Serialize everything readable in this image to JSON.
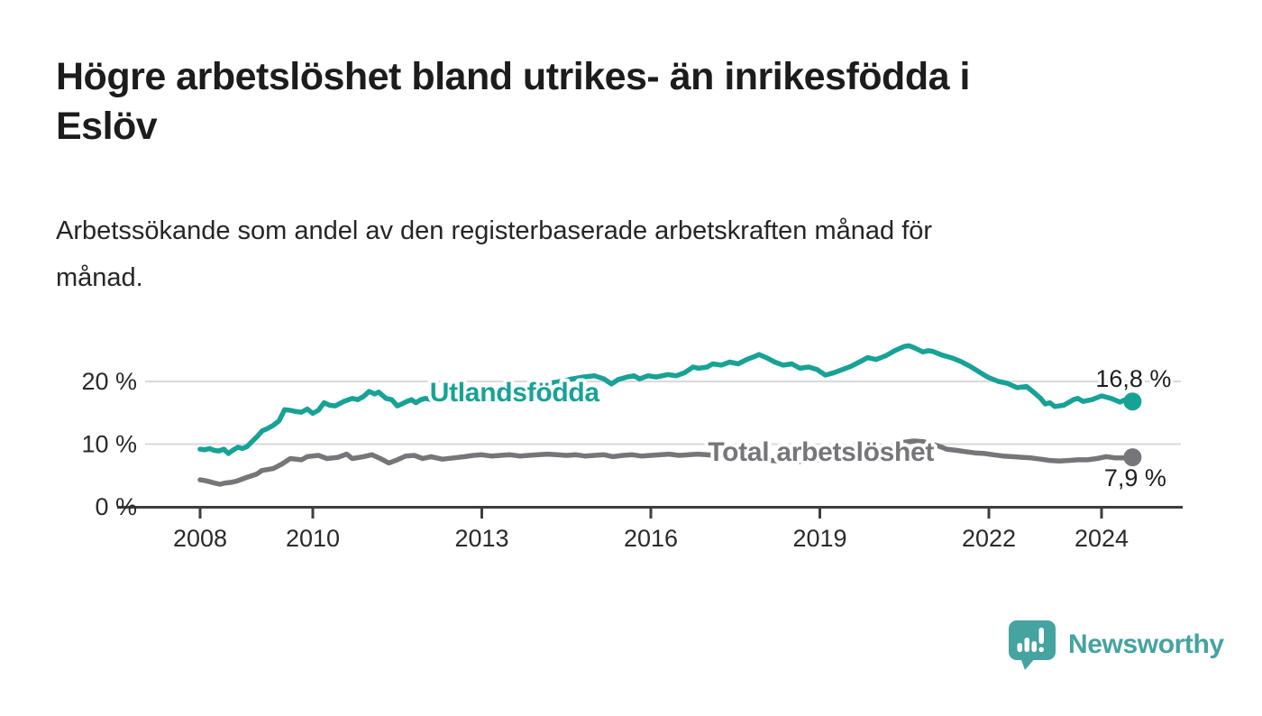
{
  "page": {
    "title": "Högre arbetslöshet bland utrikes- än inrikesfödda i\nEslöv",
    "subtitle": "Arbetssökande som andel av den registerbaserade arbetskraften månad för\nmånad."
  },
  "branding": {
    "logo_text": "Newsworthy",
    "logo_color": "#45A3A0",
    "logo_icon": "speech-bubble-bar-chart-icon"
  },
  "chart_data": {
    "type": "line",
    "title": "Högre arbetslöshet bland utrikes- än inrikesfödda i Eslöv",
    "subtitle": "Arbetssökande som andel av den registerbaserade arbetskraften månad för månad.",
    "xlabel": "",
    "ylabel": "",
    "grid": "horizontal",
    "legend_position": "inline-labels",
    "x_axis": {
      "ticks": [
        2008,
        2010,
        2013,
        2016,
        2019,
        2022,
        2024
      ],
      "tick_labels": [
        "2008",
        "2010",
        "2013",
        "2016",
        "2019",
        "2022",
        "2024"
      ],
      "range": [
        2007.1,
        2025.4
      ]
    },
    "y_axis": {
      "ticks": [
        0,
        10,
        20
      ],
      "tick_labels": [
        "0 %",
        "10 %",
        "20 %"
      ],
      "range": [
        0,
        28
      ]
    },
    "style": {
      "grid_color": "#D9D9D9",
      "axis_color": "#3E3E3E",
      "tick_label_color": "#2A2A2A",
      "value_label_color": "#1E1E1E",
      "background": "#FFFFFF"
    },
    "series": [
      {
        "name": "Utlandsfödda",
        "color": "#18A296",
        "label": {
          "text": "Utlandsfödda",
          "year": 2013.58,
          "value": 18.3
        },
        "end_label": "16,8 %",
        "end_value": 16.8,
        "end_label_offset": [
          1,
          -25
        ],
        "points": [
          [
            2008.0,
            9.2
          ],
          [
            2008.08,
            9.1
          ],
          [
            2008.17,
            9.3
          ],
          [
            2008.25,
            9.0
          ],
          [
            2008.33,
            8.9
          ],
          [
            2008.42,
            9.2
          ],
          [
            2008.5,
            8.5
          ],
          [
            2008.58,
            9.0
          ],
          [
            2008.67,
            9.5
          ],
          [
            2008.75,
            9.3
          ],
          [
            2008.83,
            9.6
          ],
          [
            2008.92,
            10.4
          ],
          [
            2009.0,
            11.1
          ],
          [
            2009.1,
            12.1
          ],
          [
            2009.2,
            12.5
          ],
          [
            2009.3,
            13.0
          ],
          [
            2009.4,
            13.7
          ],
          [
            2009.5,
            15.5
          ],
          [
            2009.6,
            15.4
          ],
          [
            2009.7,
            15.2
          ],
          [
            2009.8,
            15.1
          ],
          [
            2009.9,
            15.6
          ],
          [
            2010.0,
            14.9
          ],
          [
            2010.1,
            15.4
          ],
          [
            2010.2,
            16.6
          ],
          [
            2010.3,
            16.2
          ],
          [
            2010.4,
            16.1
          ],
          [
            2010.55,
            16.8
          ],
          [
            2010.7,
            17.3
          ],
          [
            2010.8,
            17.1
          ],
          [
            2010.9,
            17.6
          ],
          [
            2011.0,
            18.4
          ],
          [
            2011.1,
            18.0
          ],
          [
            2011.17,
            18.3
          ],
          [
            2011.3,
            17.3
          ],
          [
            2011.4,
            17.1
          ],
          [
            2011.5,
            16.1
          ],
          [
            2011.58,
            16.4
          ],
          [
            2011.67,
            16.8
          ],
          [
            2011.75,
            17.1
          ],
          [
            2011.83,
            16.6
          ],
          [
            2011.92,
            17.1
          ],
          [
            2012.0,
            17.3
          ],
          [
            2012.17,
            17.0
          ],
          [
            2012.33,
            17.2
          ],
          [
            2012.5,
            17.4
          ],
          [
            2012.67,
            17.6
          ],
          [
            2012.83,
            17.8
          ],
          [
            2013.0,
            18.0
          ],
          [
            2013.2,
            18.3
          ],
          [
            2013.4,
            18.5
          ],
          [
            2013.6,
            18.8
          ],
          [
            2013.8,
            19.1
          ],
          [
            2014.0,
            19.4
          ],
          [
            2014.2,
            19.7
          ],
          [
            2014.4,
            20.0
          ],
          [
            2014.6,
            20.4
          ],
          [
            2014.8,
            20.7
          ],
          [
            2015.0,
            20.9
          ],
          [
            2015.17,
            20.4
          ],
          [
            2015.3,
            19.6
          ],
          [
            2015.42,
            20.3
          ],
          [
            2015.58,
            20.7
          ],
          [
            2015.7,
            20.9
          ],
          [
            2015.8,
            20.4
          ],
          [
            2015.95,
            20.9
          ],
          [
            2016.1,
            20.7
          ],
          [
            2016.3,
            21.1
          ],
          [
            2016.45,
            20.9
          ],
          [
            2016.6,
            21.4
          ],
          [
            2016.75,
            22.3
          ],
          [
            2016.85,
            22.1
          ],
          [
            2017.0,
            22.3
          ],
          [
            2017.1,
            22.8
          ],
          [
            2017.25,
            22.6
          ],
          [
            2017.4,
            23.1
          ],
          [
            2017.55,
            22.8
          ],
          [
            2017.7,
            23.5
          ],
          [
            2017.85,
            24.0
          ],
          [
            2017.92,
            24.3
          ],
          [
            2018.05,
            23.8
          ],
          [
            2018.2,
            23.1
          ],
          [
            2018.35,
            22.6
          ],
          [
            2018.5,
            22.8
          ],
          [
            2018.65,
            22.1
          ],
          [
            2018.8,
            22.3
          ],
          [
            2018.95,
            21.9
          ],
          [
            2019.1,
            21.0
          ],
          [
            2019.25,
            21.4
          ],
          [
            2019.4,
            21.9
          ],
          [
            2019.55,
            22.4
          ],
          [
            2019.7,
            23.1
          ],
          [
            2019.85,
            23.8
          ],
          [
            2020.0,
            23.5
          ],
          [
            2020.17,
            24.1
          ],
          [
            2020.33,
            24.9
          ],
          [
            2020.5,
            25.6
          ],
          [
            2020.58,
            25.7
          ],
          [
            2020.67,
            25.4
          ],
          [
            2020.83,
            24.7
          ],
          [
            2020.92,
            24.9
          ],
          [
            2021.0,
            24.8
          ],
          [
            2021.17,
            24.2
          ],
          [
            2021.33,
            23.8
          ],
          [
            2021.5,
            23.2
          ],
          [
            2021.67,
            22.4
          ],
          [
            2021.83,
            21.5
          ],
          [
            2021.92,
            21.0
          ],
          [
            2022.0,
            20.6
          ],
          [
            2022.17,
            20.0
          ],
          [
            2022.33,
            19.7
          ],
          [
            2022.5,
            19.0
          ],
          [
            2022.67,
            19.2
          ],
          [
            2022.83,
            18.0
          ],
          [
            2022.92,
            17.3
          ],
          [
            2023.0,
            16.4
          ],
          [
            2023.08,
            16.6
          ],
          [
            2023.17,
            16.0
          ],
          [
            2023.33,
            16.2
          ],
          [
            2023.5,
            17.1
          ],
          [
            2023.58,
            17.3
          ],
          [
            2023.67,
            16.8
          ],
          [
            2023.83,
            17.1
          ],
          [
            2024.0,
            17.7
          ],
          [
            2024.17,
            17.3
          ],
          [
            2024.33,
            16.7
          ],
          [
            2024.42,
            17.1
          ],
          [
            2024.55,
            16.8
          ]
        ]
      },
      {
        "name": "Total arbetslöshet",
        "color": "#76767A",
        "label": {
          "text": "Total arbetslöshet",
          "year": 2019.02,
          "value": 8.8
        },
        "end_label": "7,9 %",
        "end_value": 7.9,
        "end_label_offset": [
          3,
          23
        ],
        "points": [
          [
            2008.0,
            4.3
          ],
          [
            2008.08,
            4.2
          ],
          [
            2008.17,
            4.0
          ],
          [
            2008.25,
            3.8
          ],
          [
            2008.35,
            3.6
          ],
          [
            2008.45,
            3.8
          ],
          [
            2008.55,
            3.9
          ],
          [
            2008.65,
            4.1
          ],
          [
            2008.8,
            4.6
          ],
          [
            2008.9,
            4.9
          ],
          [
            2009.0,
            5.2
          ],
          [
            2009.1,
            5.8
          ],
          [
            2009.3,
            6.1
          ],
          [
            2009.45,
            6.8
          ],
          [
            2009.6,
            7.7
          ],
          [
            2009.8,
            7.5
          ],
          [
            2009.9,
            8.0
          ],
          [
            2010.1,
            8.2
          ],
          [
            2010.25,
            7.7
          ],
          [
            2010.45,
            7.9
          ],
          [
            2010.6,
            8.4
          ],
          [
            2010.7,
            7.7
          ],
          [
            2010.9,
            8.0
          ],
          [
            2011.05,
            8.3
          ],
          [
            2011.2,
            7.7
          ],
          [
            2011.35,
            7.0
          ],
          [
            2011.5,
            7.5
          ],
          [
            2011.65,
            8.1
          ],
          [
            2011.8,
            8.2
          ],
          [
            2011.95,
            7.7
          ],
          [
            2012.1,
            8.0
          ],
          [
            2012.3,
            7.6
          ],
          [
            2012.5,
            7.8
          ],
          [
            2012.7,
            8.0
          ],
          [
            2012.85,
            8.2
          ],
          [
            2013.0,
            8.3
          ],
          [
            2013.17,
            8.1
          ],
          [
            2013.33,
            8.2
          ],
          [
            2013.5,
            8.3
          ],
          [
            2013.67,
            8.1
          ],
          [
            2013.83,
            8.2
          ],
          [
            2014.0,
            8.3
          ],
          [
            2014.17,
            8.4
          ],
          [
            2014.33,
            8.3
          ],
          [
            2014.5,
            8.2
          ],
          [
            2014.67,
            8.3
          ],
          [
            2014.83,
            8.1
          ],
          [
            2015.0,
            8.2
          ],
          [
            2015.17,
            8.3
          ],
          [
            2015.33,
            8.0
          ],
          [
            2015.5,
            8.2
          ],
          [
            2015.67,
            8.3
          ],
          [
            2015.83,
            8.1
          ],
          [
            2016.0,
            8.2
          ],
          [
            2016.17,
            8.3
          ],
          [
            2016.33,
            8.4
          ],
          [
            2016.5,
            8.2
          ],
          [
            2016.67,
            8.3
          ],
          [
            2016.83,
            8.4
          ],
          [
            2017.0,
            8.3
          ],
          [
            2017.25,
            8.1
          ],
          [
            2017.5,
            7.9
          ],
          [
            2017.75,
            7.7
          ],
          [
            2018.0,
            7.5
          ],
          [
            2018.25,
            7.3
          ],
          [
            2018.5,
            7.2
          ],
          [
            2018.75,
            7.3
          ],
          [
            2019.0,
            7.5
          ],
          [
            2019.25,
            7.7
          ],
          [
            2019.5,
            7.9
          ],
          [
            2019.75,
            8.2
          ],
          [
            2020.0,
            8.6
          ],
          [
            2020.25,
            9.5
          ],
          [
            2020.5,
            10.3
          ],
          [
            2020.67,
            10.5
          ],
          [
            2020.83,
            10.4
          ],
          [
            2021.0,
            10.0
          ],
          [
            2021.17,
            9.5
          ],
          [
            2021.25,
            9.2
          ],
          [
            2021.42,
            9.0
          ],
          [
            2021.58,
            8.8
          ],
          [
            2021.75,
            8.6
          ],
          [
            2021.92,
            8.5
          ],
          [
            2022.08,
            8.3
          ],
          [
            2022.25,
            8.1
          ],
          [
            2022.42,
            8.0
          ],
          [
            2022.58,
            7.9
          ],
          [
            2022.75,
            7.8
          ],
          [
            2022.92,
            7.6
          ],
          [
            2023.08,
            7.4
          ],
          [
            2023.25,
            7.3
          ],
          [
            2023.42,
            7.4
          ],
          [
            2023.58,
            7.5
          ],
          [
            2023.75,
            7.5
          ],
          [
            2023.92,
            7.7
          ],
          [
            2024.08,
            8.0
          ],
          [
            2024.25,
            7.8
          ],
          [
            2024.42,
            7.8
          ],
          [
            2024.55,
            7.9
          ]
        ]
      }
    ]
  }
}
